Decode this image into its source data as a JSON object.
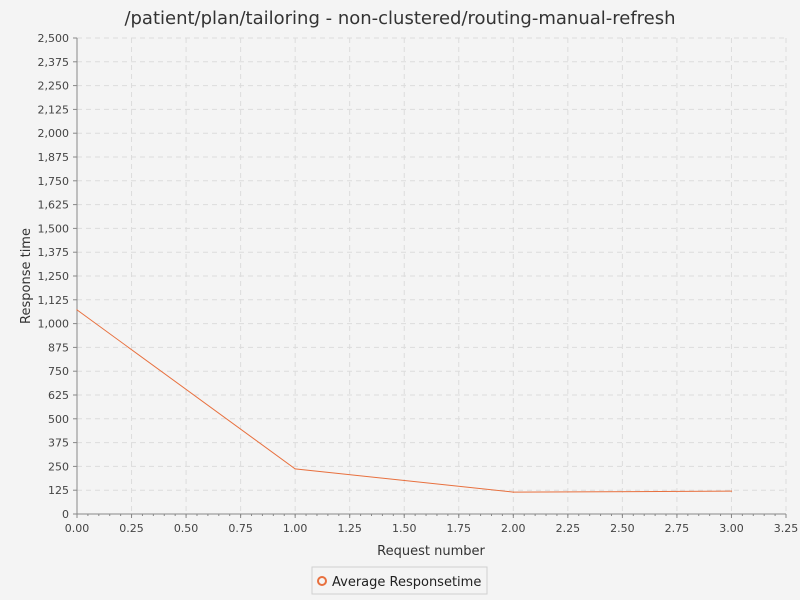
{
  "chart_data": {
    "type": "line",
    "title": "/patient/plan/tailoring - non-clustered/routing-manual-refresh",
    "xlabel": "Request number",
    "ylabel": "Response time",
    "xlim": [
      0,
      3.25
    ],
    "ylim": [
      0,
      2500
    ],
    "x_ticks": [
      "0.00",
      "0.25",
      "0.50",
      "0.75",
      "1.00",
      "1.25",
      "1.50",
      "1.75",
      "2.00",
      "2.25",
      "2.50",
      "2.75",
      "3.00",
      "3.25"
    ],
    "y_ticks": [
      "0",
      "125",
      "250",
      "375",
      "500",
      "625",
      "750",
      "875",
      "1,000",
      "1,125",
      "1,250",
      "1,375",
      "1,500",
      "1,625",
      "1,750",
      "1,875",
      "2,000",
      "2,125",
      "2,250",
      "2,375",
      "2,500"
    ],
    "grid": true,
    "legend_position": "bottom-center",
    "series": [
      {
        "name": "Average Responsetime",
        "color": "#e8703e",
        "x": [
          0,
          1,
          2,
          3
        ],
        "y": [
          1072,
          237,
          115,
          120
        ]
      }
    ]
  }
}
